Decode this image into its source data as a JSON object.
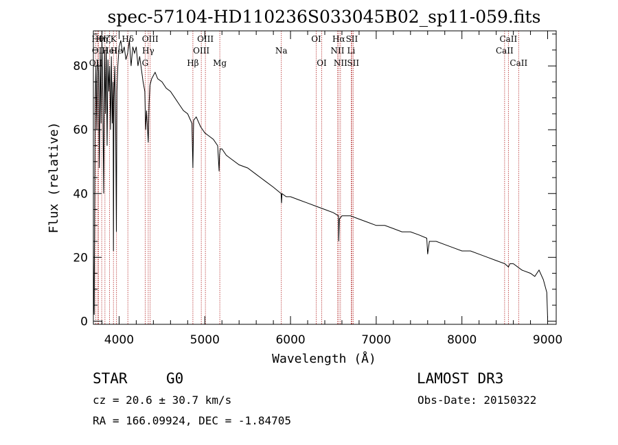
{
  "chart_data": {
    "type": "line",
    "title": "spec-57104-HD110236S033045B02_sp11-059.fits",
    "xlabel": "Wavelength (Å)",
    "ylabel": "Flux (relative)",
    "xlim": [
      3700,
      9100
    ],
    "ylim": [
      -1,
      91
    ],
    "xticks": [
      4000,
      5000,
      6000,
      7000,
      8000,
      9000
    ],
    "yticks": [
      0,
      20,
      40,
      60,
      80
    ],
    "series": [
      {
        "name": "spectrum",
        "x": [
          3700,
          3705,
          3710,
          3720,
          3730,
          3740,
          3750,
          3760,
          3770,
          3780,
          3790,
          3800,
          3810,
          3820,
          3830,
          3840,
          3850,
          3860,
          3870,
          3880,
          3890,
          3900,
          3910,
          3920,
          3930,
          3934,
          3940,
          3950,
          3960,
          3968,
          3975,
          3985,
          4000,
          4020,
          4040,
          4060,
          4080,
          4100,
          4120,
          4140,
          4160,
          4180,
          4200,
          4220,
          4240,
          4260,
          4280,
          4300,
          4310,
          4320,
          4340,
          4350,
          4360,
          4380,
          4400,
          4420,
          4450,
          4500,
          4550,
          4600,
          4650,
          4700,
          4750,
          4800,
          4850,
          4861,
          4870,
          4900,
          4950,
          5000,
          5050,
          5100,
          5150,
          5167,
          5172,
          5180,
          5200,
          5250,
          5300,
          5400,
          5500,
          5600,
          5700,
          5800,
          5890,
          5895,
          5900,
          5950,
          6000,
          6100,
          6200,
          6300,
          6400,
          6500,
          6560,
          6563,
          6570,
          6600,
          6700,
          6800,
          6900,
          7000,
          7100,
          7200,
          7300,
          7400,
          7500,
          7590,
          7600,
          7620,
          7700,
          7800,
          7900,
          8000,
          8100,
          8200,
          8300,
          8400,
          8500,
          8542,
          8560,
          8600,
          8700,
          8800,
          8850,
          8900,
          8950,
          8990,
          9000
        ],
        "y": [
          25,
          8,
          2,
          68,
          80,
          60,
          82,
          78,
          48,
          85,
          62,
          88,
          70,
          40,
          85,
          65,
          86,
          55,
          82,
          72,
          80,
          60,
          83,
          62,
          75,
          22,
          70,
          80,
          60,
          28,
          72,
          80,
          86,
          88,
          84,
          86,
          82,
          84,
          88,
          80,
          86,
          84,
          86,
          80,
          83,
          79,
          75,
          72,
          60,
          66,
          56,
          68,
          74,
          76,
          77,
          78,
          76,
          75,
          73,
          72,
          70,
          68,
          66,
          65,
          62,
          48,
          63,
          64,
          61,
          59,
          58,
          57,
          55,
          47,
          52,
          54,
          54,
          52,
          51,
          49,
          48,
          46,
          44,
          42,
          40,
          37,
          40,
          39,
          39,
          38,
          37,
          36,
          35,
          34,
          33,
          25,
          32,
          33,
          33,
          32,
          31,
          30,
          30,
          29,
          28,
          28,
          27,
          26,
          21,
          25,
          25,
          24,
          23,
          22,
          22,
          21,
          20,
          19,
          18,
          17,
          18,
          18,
          16,
          15,
          14,
          16,
          13,
          9,
          1
        ]
      }
    ],
    "spectral_lines": [
      {
        "label": "OII",
        "x": 3727,
        "row": 2
      },
      {
        "label": "Hθ",
        "x": 3750,
        "row": 0
      },
      {
        "label": "OII",
        "x": 3760,
        "row": 1
      },
      {
        "label": "Hη",
        "x": 3797,
        "row": 0
      },
      {
        "label": "Hζ",
        "x": 3835,
        "row": 0
      },
      {
        "label": "HeI",
        "x": 3889,
        "row": 1
      },
      {
        "label": "K",
        "x": 3934,
        "row": 0
      },
      {
        "label": "He",
        "x": 3970,
        "row": 1
      },
      {
        "label": "Hδ",
        "x": 4102,
        "row": 0
      },
      {
        "label": "OIII",
        "x": 4363,
        "row": 0
      },
      {
        "label": "Hγ",
        "x": 4340,
        "row": 1
      },
      {
        "label": "G",
        "x": 4304,
        "row": 2
      },
      {
        "label": "Hβ",
        "x": 4861,
        "row": 2
      },
      {
        "label": "OIII",
        "x": 5007,
        "row": 0
      },
      {
        "label": "OIII",
        "x": 4959,
        "row": 1
      },
      {
        "label": "Mg",
        "x": 5175,
        "row": 2
      },
      {
        "label": "Na",
        "x": 5893,
        "row": 1
      },
      {
        "label": "OI",
        "x": 6300,
        "row": 0
      },
      {
        "label": "OI",
        "x": 6364,
        "row": 2
      },
      {
        "label": "Hα",
        "x": 6563,
        "row": 0
      },
      {
        "label": "NII",
        "x": 6548,
        "row": 1
      },
      {
        "label": "NII",
        "x": 6583,
        "row": 2
      },
      {
        "label": "SII",
        "x": 6716,
        "row": 0
      },
      {
        "label": "Li",
        "x": 6708,
        "row": 1
      },
      {
        "label": "SII",
        "x": 6731,
        "row": 2
      },
      {
        "label": "CaII",
        "x": 8542,
        "row": 0
      },
      {
        "label": "CaII",
        "x": 8498,
        "row": 1
      },
      {
        "label": "CaII",
        "x": 8662,
        "row": 2
      }
    ]
  },
  "info": {
    "class": "STAR",
    "subclass": "G0",
    "survey": "LAMOST DR3",
    "cz": "cz = 20.6 ± 30.7 km/s",
    "obs_date": "Obs-Date: 20150322",
    "coords": "RA = 166.09924, DEC =  -1.84705"
  }
}
